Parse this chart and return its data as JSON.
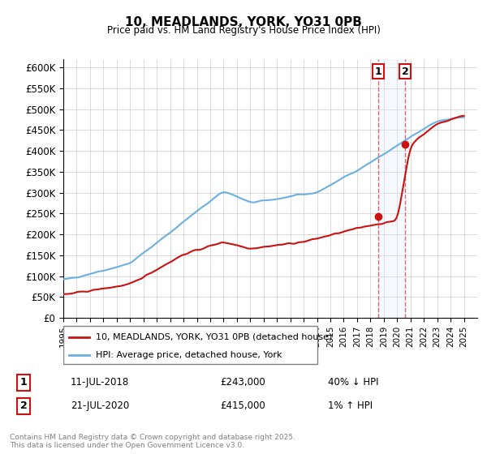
{
  "title_line1": "10, MEADLANDS, YORK, YO31 0PB",
  "title_line2": "Price paid vs. HM Land Registry's House Price Index (HPI)",
  "ylabel": "",
  "ylim": [
    0,
    620000
  ],
  "yticks": [
    0,
    50000,
    100000,
    150000,
    200000,
    250000,
    300000,
    350000,
    400000,
    450000,
    500000,
    550000,
    600000
  ],
  "ytick_labels": [
    "£0",
    "£50K",
    "£100K",
    "£150K",
    "£200K",
    "£250K",
    "£300K",
    "£350K",
    "£400K",
    "£450K",
    "£500K",
    "£550K",
    "£600K"
  ],
  "hpi_color": "#6ab0e0",
  "price_color": "#cc1111",
  "marker_color_1": "#cc1111",
  "marker_color_2": "#cc1111",
  "vline_color": "#dd6666",
  "shade_color": "#ddeeff",
  "legend_label_price": "10, MEADLANDS, YORK, YO31 0PB (detached house)",
  "legend_label_hpi": "HPI: Average price, detached house, York",
  "annotation1_label": "1",
  "annotation1_date": "11-JUL-2018",
  "annotation1_price": "£243,000",
  "annotation1_hpi": "40% ↓ HPI",
  "annotation2_label": "2",
  "annotation2_date": "21-JUL-2020",
  "annotation2_price": "£415,000",
  "annotation2_hpi": "1% ↑ HPI",
  "footnote": "Contains HM Land Registry data © Crown copyright and database right 2025.\nThis data is licensed under the Open Government Licence v3.0.",
  "background_color": "#ffffff",
  "grid_color": "#cccccc"
}
